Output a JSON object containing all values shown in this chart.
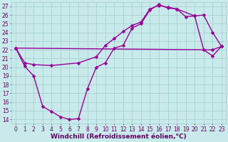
{
  "xlabel": "Windchill (Refroidissement éolien,°C)",
  "xlim": [
    -0.5,
    23.5
  ],
  "ylim": [
    13.5,
    27.5
  ],
  "xticks": [
    0,
    1,
    2,
    3,
    4,
    5,
    6,
    7,
    8,
    9,
    10,
    11,
    12,
    13,
    14,
    15,
    16,
    17,
    18,
    19,
    20,
    21,
    22,
    23
  ],
  "yticks": [
    14,
    15,
    16,
    17,
    18,
    19,
    20,
    21,
    22,
    23,
    24,
    25,
    26,
    27
  ],
  "bg_color": "#c8eaea",
  "grid_color": "#a8d0d0",
  "line_color": "#990099",
  "line_width": 1.0,
  "marker_size": 2.5,
  "series1_x": [
    0,
    1,
    2,
    3,
    4,
    5,
    6,
    7,
    8,
    9,
    10,
    11,
    12,
    13,
    14,
    15,
    16,
    17,
    18,
    19,
    20,
    21,
    22,
    23
  ],
  "series1_y": [
    22.2,
    20.1,
    19.0,
    15.5,
    14.9,
    14.3,
    14.0,
    14.1,
    17.5,
    20.0,
    20.5,
    22.2,
    22.5,
    24.5,
    25.0,
    26.6,
    27.2,
    26.8,
    26.7,
    25.8,
    25.9,
    22.0,
    21.3,
    22.4
  ],
  "series2_x": [
    0,
    1,
    2,
    4,
    7,
    9,
    10,
    11,
    12,
    13,
    14,
    15,
    16,
    17,
    18,
    20,
    21,
    22,
    23
  ],
  "series2_y": [
    22.2,
    20.5,
    20.3,
    20.2,
    20.5,
    21.2,
    22.5,
    23.3,
    24.1,
    24.8,
    25.2,
    26.7,
    27.1,
    26.9,
    26.7,
    25.9,
    26.0,
    24.0,
    22.4
  ],
  "series3_x": [
    0,
    22,
    23
  ],
  "series3_y": [
    22.2,
    22.0,
    22.4
  ],
  "font_color": "#660066",
  "tick_font_size": 5.5,
  "xlabel_font_size": 6.5
}
